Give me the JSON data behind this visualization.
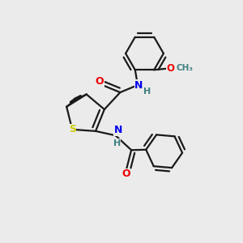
{
  "background_color": "#ebebeb",
  "bond_color": "#1a1a1a",
  "bond_width": 1.6,
  "S_color": "#cccc00",
  "N_color": "#0000ee",
  "O_color": "#ee0000",
  "H_color": "#408080",
  "figsize": [
    3.0,
    3.0
  ],
  "dpi": 100,
  "xlim": [
    0,
    10
  ],
  "ylim": [
    0,
    10
  ]
}
